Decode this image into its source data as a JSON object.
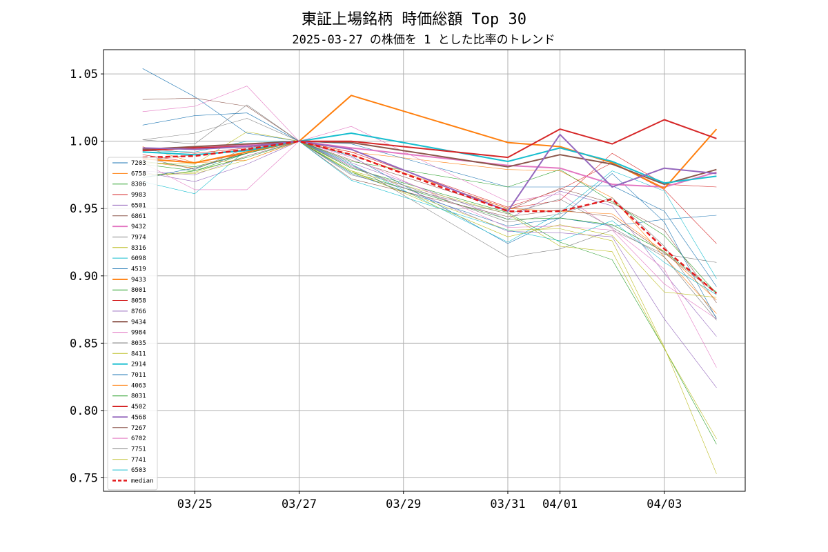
{
  "chart_data": {
    "type": "line",
    "title": "東証上場銘柄 時価総額 Top 30",
    "subtitle": "2025-03-27 の株価を 1 とした比率のトレンド",
    "xlabel": "",
    "ylabel": "",
    "x": [
      "03/24",
      "03/25",
      "03/26",
      "03/27",
      "03/28",
      "03/31",
      "04/01",
      "04/02",
      "04/03",
      "04/04"
    ],
    "x_day_index": [
      0,
      1,
      2,
      3,
      4,
      7,
      8,
      9,
      10,
      11
    ],
    "xticks": [
      {
        "day": 1,
        "label": "03/25"
      },
      {
        "day": 3,
        "label": "03/27"
      },
      {
        "day": 5,
        "label": "03/29"
      },
      {
        "day": 7,
        "label": "03/31"
      },
      {
        "day": 8,
        "label": "04/01"
      },
      {
        "day": 10,
        "label": "04/03"
      }
    ],
    "xlim": [
      -0.75,
      11.55
    ],
    "ylim": [
      0.74,
      1.068
    ],
    "yticks": [
      0.75,
      0.8,
      0.85,
      0.9,
      0.95,
      1.0,
      1.05
    ],
    "ytick_labels": [
      "0.75",
      "0.80",
      "0.85",
      "0.90",
      "0.95",
      "1.00",
      "1.05"
    ],
    "grid": true,
    "legend_position": "lower-left",
    "series": [
      {
        "name": "7203",
        "color": "#1f77b4",
        "width": "thin",
        "values": [
          1.054,
          1.033,
          1.006,
          1.0,
          0.989,
          0.924,
          0.943,
          0.937,
          0.942,
          0.945
        ]
      },
      {
        "name": "6758",
        "color": "#ff7f0e",
        "width": "thin",
        "values": [
          0.985,
          0.98,
          0.992,
          1.0,
          0.992,
          0.979,
          0.978,
          0.958,
          0.914,
          0.872
        ]
      },
      {
        "name": "8306",
        "color": "#2ca02c",
        "width": "thin",
        "values": [
          0.973,
          0.978,
          0.991,
          1.0,
          0.98,
          0.947,
          0.925,
          0.912,
          0.846,
          0.775
        ]
      },
      {
        "name": "9983",
        "color": "#d62728",
        "width": "thin",
        "values": [
          0.995,
          0.991,
          0.995,
          1.0,
          0.99,
          0.95,
          0.956,
          0.991,
          0.968,
          0.966
        ]
      },
      {
        "name": "6501",
        "color": "#9467bd",
        "width": "thin",
        "values": [
          0.977,
          0.97,
          0.983,
          1.0,
          0.984,
          0.942,
          0.963,
          0.952,
          0.902,
          0.855
        ]
      },
      {
        "name": "6861",
        "color": "#8c564b",
        "width": "thin",
        "values": [
          1.031,
          1.032,
          1.026,
          1.0,
          0.986,
          0.949,
          0.965,
          0.954,
          0.934,
          0.88
        ]
      },
      {
        "name": "9432",
        "color": "#e377c2",
        "width": "thick",
        "values": [
          0.994,
          0.995,
          0.997,
          1.0,
          0.995,
          0.982,
          0.98,
          0.968,
          0.966,
          0.977
        ]
      },
      {
        "name": "7974",
        "color": "#7f7f7f",
        "width": "thin",
        "values": [
          1.001,
          0.998,
          1.027,
          1.0,
          0.983,
          0.914,
          0.92,
          0.934,
          0.916,
          0.91
        ]
      },
      {
        "name": "8316",
        "color": "#bcbd22",
        "width": "thin",
        "values": [
          0.975,
          0.977,
          0.989,
          1.0,
          0.978,
          0.946,
          0.922,
          0.918,
          0.846,
          0.779
        ]
      },
      {
        "name": "6098",
        "color": "#17becf",
        "width": "thin",
        "values": [
          0.97,
          0.961,
          0.994,
          1.0,
          0.983,
          0.925,
          0.947,
          0.978,
          0.963,
          0.898
        ]
      },
      {
        "name": "4519",
        "color": "#1f77b4",
        "width": "thin",
        "values": [
          1.012,
          1.019,
          1.021,
          1.0,
          0.998,
          0.966,
          0.966,
          0.967,
          0.948,
          0.892
        ]
      },
      {
        "name": "9433",
        "color": "#ff7f0e",
        "width": "thick",
        "values": [
          0.987,
          0.984,
          0.992,
          1.0,
          1.034,
          0.999,
          0.996,
          0.984,
          0.965,
          1.009
        ]
      },
      {
        "name": "8001",
        "color": "#2ca02c",
        "width": "thin",
        "values": [
          0.983,
          0.978,
          0.988,
          1.0,
          0.985,
          0.966,
          0.979,
          0.955,
          0.93,
          0.887
        ]
      },
      {
        "name": "8058",
        "color": "#d62728",
        "width": "thin",
        "values": [
          0.99,
          0.984,
          0.991,
          1.0,
          0.992,
          0.951,
          0.964,
          0.984,
          0.964,
          0.924
        ]
      },
      {
        "name": "8766",
        "color": "#9467bd",
        "width": "thin",
        "values": [
          0.978,
          0.975,
          0.989,
          1.0,
          0.982,
          0.933,
          0.932,
          0.929,
          0.868,
          0.817
        ]
      },
      {
        "name": "9434",
        "color": "#8c564b",
        "width": "thick",
        "values": [
          0.994,
          0.996,
          0.998,
          1.0,
          0.999,
          0.981,
          0.99,
          0.983,
          0.968,
          0.979
        ]
      },
      {
        "name": "9984",
        "color": "#e377c2",
        "width": "thin",
        "values": [
          1.022,
          1.026,
          1.041,
          1.0,
          1.011,
          0.955,
          0.961,
          0.935,
          0.905,
          0.832
        ]
      },
      {
        "name": "8035",
        "color": "#7f7f7f",
        "width": "thin",
        "values": [
          1.001,
          1.006,
          1.017,
          1.0,
          0.981,
          0.94,
          0.946,
          0.958,
          0.922,
          0.869
        ]
      },
      {
        "name": "8411",
        "color": "#bcbd22",
        "width": "thin",
        "values": [
          0.975,
          0.976,
          0.986,
          1.0,
          0.977,
          0.934,
          0.935,
          0.926,
          0.847,
          0.753
        ]
      },
      {
        "name": "2914",
        "color": "#17becf",
        "width": "thick",
        "values": [
          0.992,
          0.99,
          0.993,
          1.0,
          1.006,
          0.985,
          0.995,
          0.985,
          0.969,
          0.974
        ]
      },
      {
        "name": "7011",
        "color": "#1f77b4",
        "width": "thin",
        "values": [
          0.973,
          0.98,
          0.991,
          1.0,
          0.976,
          0.937,
          0.943,
          0.976,
          0.94,
          0.868
        ]
      },
      {
        "name": "4063",
        "color": "#ff7f0e",
        "width": "thin",
        "values": [
          0.996,
          0.984,
          0.986,
          1.0,
          0.99,
          0.95,
          0.948,
          0.946,
          0.918,
          0.882
        ]
      },
      {
        "name": "8031",
        "color": "#2ca02c",
        "width": "thin",
        "values": [
          0.985,
          0.981,
          0.991,
          1.0,
          0.977,
          0.942,
          0.943,
          0.938,
          0.918,
          0.888
        ]
      },
      {
        "name": "4502",
        "color": "#d62728",
        "width": "thick",
        "values": [
          0.993,
          0.995,
          0.996,
          1.0,
          1.0,
          0.988,
          1.009,
          0.998,
          1.016,
          1.002
        ]
      },
      {
        "name": "4568",
        "color": "#9467bd",
        "width": "thick",
        "values": [
          0.995,
          0.994,
          0.996,
          1.0,
          0.994,
          0.948,
          1.005,
          0.966,
          0.98,
          0.976
        ]
      },
      {
        "name": "7267",
        "color": "#8c564b",
        "width": "thin",
        "values": [
          0.986,
          0.99,
          0.994,
          1.0,
          0.972,
          0.944,
          0.949,
          0.944,
          0.917,
          0.887
        ]
      },
      {
        "name": "6702",
        "color": "#e377c2",
        "width": "thin",
        "values": [
          0.984,
          0.964,
          0.964,
          1.0,
          0.988,
          0.936,
          0.937,
          0.934,
          0.894,
          0.868
        ]
      },
      {
        "name": "7751",
        "color": "#7f7f7f",
        "width": "thin",
        "values": [
          0.988,
          0.979,
          0.995,
          1.0,
          0.975,
          0.946,
          0.957,
          0.936,
          0.914,
          0.867
        ]
      },
      {
        "name": "7741",
        "color": "#bcbd22",
        "width": "thin",
        "values": [
          0.984,
          0.983,
          1.007,
          1.0,
          0.978,
          0.929,
          0.938,
          0.93,
          0.888,
          0.884
        ]
      },
      {
        "name": "6503",
        "color": "#17becf",
        "width": "thin",
        "values": [
          0.993,
          0.992,
          1.0,
          1.0,
          0.971,
          0.934,
          0.926,
          0.941,
          0.91,
          0.886
        ]
      },
      {
        "name": "median",
        "color": "#e41a1c",
        "width": "median",
        "values": [
          0.988,
          0.989,
          0.994,
          1.0,
          0.99,
          0.948,
          0.948,
          0.957,
          0.92,
          0.887
        ]
      }
    ]
  }
}
